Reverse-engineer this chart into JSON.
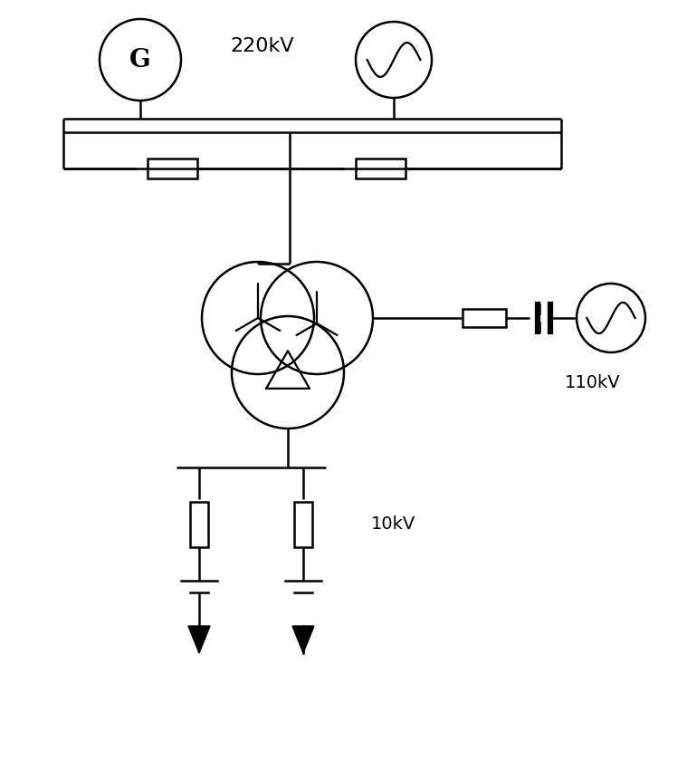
{
  "bg_color": "#ffffff",
  "line_color": "#000000",
  "line_width": 1.8,
  "fig_width": 7.59,
  "fig_height": 8.61,
  "label_220kV": "220kV",
  "label_110kV": "110kV",
  "label_10kV": "10kV"
}
